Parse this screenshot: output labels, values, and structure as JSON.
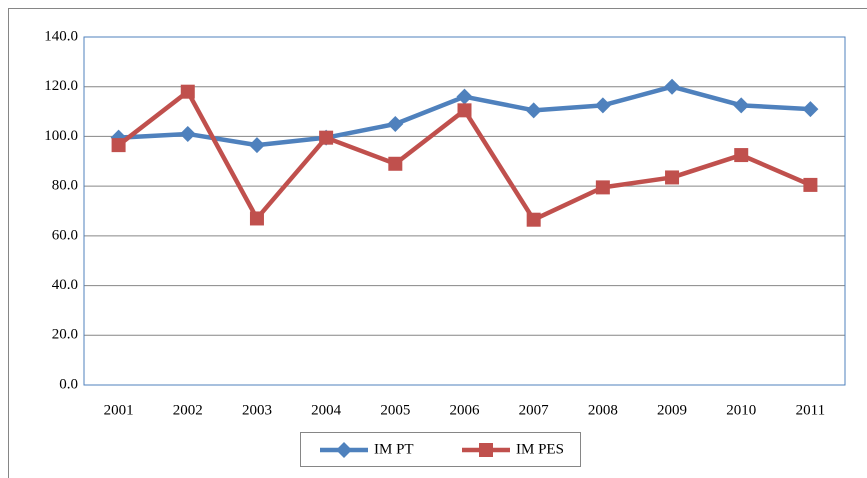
{
  "chart_data": {
    "type": "line",
    "categories": [
      "2001",
      "2002",
      "2003",
      "2004",
      "2005",
      "2006",
      "2007",
      "2008",
      "2009",
      "2010",
      "2011"
    ],
    "series": [
      {
        "name": "IM PT",
        "color": "#4f81bd",
        "marker": "diamond",
        "values": [
          99.5,
          101,
          96.5,
          99.5,
          105,
          116,
          110.5,
          112.5,
          120,
          112.5,
          111
        ]
      },
      {
        "name": "IM PES",
        "color": "#c0504d",
        "marker": "square",
        "values": [
          96.5,
          118,
          67,
          99.5,
          89,
          110.5,
          66.5,
          79.5,
          83.5,
          92.5,
          80.5
        ]
      }
    ],
    "ylim": [
      0,
      140
    ],
    "yticks": [
      {
        "value": 0,
        "label": "0.0"
      },
      {
        "value": 20,
        "label": "20.0"
      },
      {
        "value": 40,
        "label": "40.0"
      },
      {
        "value": 60,
        "label": "60.0"
      },
      {
        "value": 80,
        "label": "80.0"
      },
      {
        "value": 100,
        "label": "100.0"
      },
      {
        "value": 120,
        "label": "120.0"
      },
      {
        "value": 140,
        "label": "140.0"
      }
    ],
    "grid": true,
    "legend": "bottom"
  }
}
